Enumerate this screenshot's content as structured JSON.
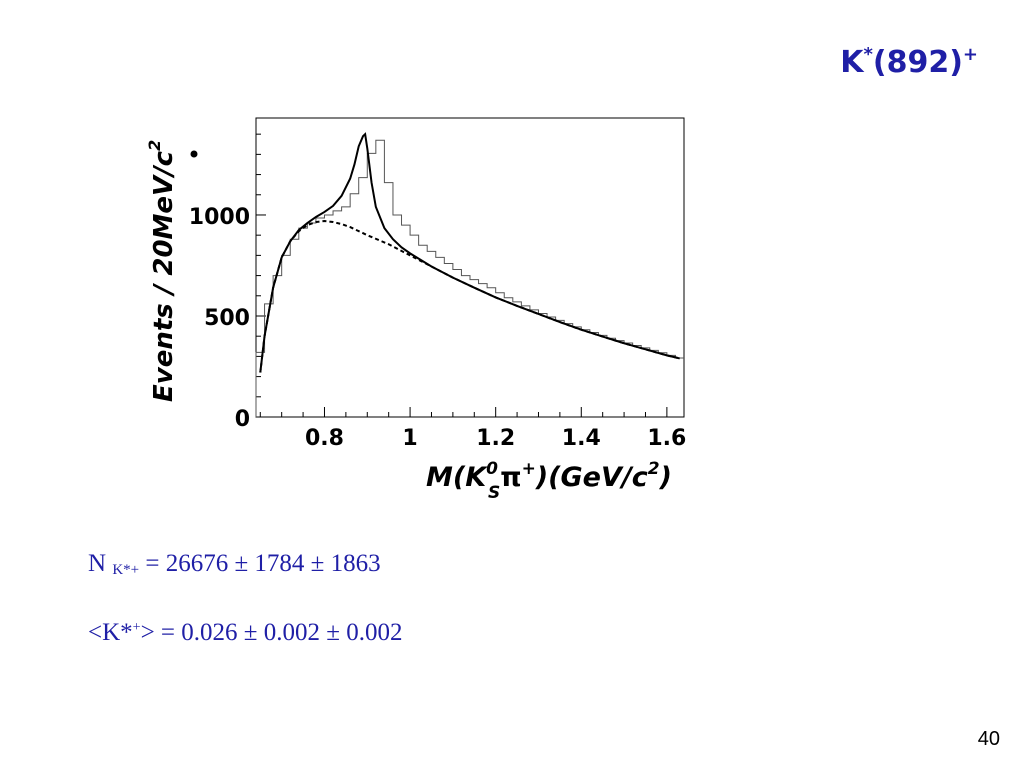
{
  "slide": {
    "title_base": "K",
    "title_sup1": "*",
    "title_mid": "(892)",
    "title_sup2": "+",
    "page_number": "40"
  },
  "equations": {
    "line1_main": "N",
    "line1_sub": "K*+",
    "line1_rest": " = 26676 ± 1784 ± 1863",
    "line2_pre": "<K*",
    "line2_sup": "+",
    "line2_rest": "> = 0.026 ± 0.002 ± 0.002"
  },
  "chart_data": {
    "type": "histogram",
    "xlabel": "M(K_S^0 π+)(GeV/c²)",
    "ylabel": "Events / 20MeV/c²",
    "xlim": [
      0.64,
      1.64
    ],
    "ylim": [
      0,
      1480
    ],
    "x_ticks": [
      0.8,
      1,
      1.2,
      1.4,
      1.6
    ],
    "x_tick_labels": [
      "0.8",
      "1",
      "1.2",
      "1.4",
      "1.6"
    ],
    "y_ticks": [
      0,
      500,
      1000
    ],
    "y_tick_labels": [
      "0",
      "500",
      "1000"
    ],
    "bin_width": 0.02,
    "histogram": {
      "bin_edges_start": 0.64,
      "values": [
        320,
        560,
        700,
        800,
        880,
        935,
        960,
        985,
        1000,
        1020,
        1040,
        1105,
        1185,
        1305,
        1370,
        1160,
        1000,
        950,
        900,
        850,
        820,
        790,
        760,
        730,
        700,
        680,
        660,
        640,
        615,
        590,
        570,
        550,
        530,
        512,
        495,
        478,
        462,
        446,
        432,
        418,
        404,
        390,
        378,
        366,
        354,
        342,
        330,
        318,
        305,
        292
      ]
    },
    "fit_total": {
      "x": [
        0.65,
        0.66,
        0.68,
        0.7,
        0.72,
        0.74,
        0.76,
        0.78,
        0.8,
        0.82,
        0.84,
        0.86,
        0.87,
        0.88,
        0.89,
        0.895,
        0.9,
        0.91,
        0.92,
        0.94,
        0.96,
        0.98,
        1.0,
        1.05,
        1.1,
        1.15,
        1.2,
        1.25,
        1.3,
        1.35,
        1.4,
        1.45,
        1.5,
        1.55,
        1.6,
        1.63
      ],
      "y": [
        220,
        400,
        640,
        790,
        870,
        925,
        960,
        990,
        1015,
        1045,
        1095,
        1180,
        1250,
        1340,
        1390,
        1400,
        1330,
        1160,
        1040,
        935,
        880,
        840,
        810,
        745,
        690,
        640,
        592,
        550,
        510,
        470,
        432,
        398,
        365,
        335,
        305,
        290
      ]
    },
    "fit_background": {
      "x": [
        0.65,
        0.66,
        0.68,
        0.7,
        0.72,
        0.74,
        0.76,
        0.78,
        0.8,
        0.82,
        0.84,
        0.86,
        0.88,
        0.9,
        0.95,
        1.0,
        1.05,
        1.1,
        1.15,
        1.2,
        1.25,
        1.3,
        1.35,
        1.4,
        1.45,
        1.5,
        1.55,
        1.6,
        1.63
      ],
      "y": [
        220,
        400,
        640,
        790,
        870,
        920,
        950,
        965,
        970,
        965,
        955,
        940,
        920,
        900,
        855,
        800,
        745,
        690,
        640,
        592,
        550,
        510,
        470,
        432,
        398,
        365,
        335,
        305,
        290
      ]
    }
  }
}
